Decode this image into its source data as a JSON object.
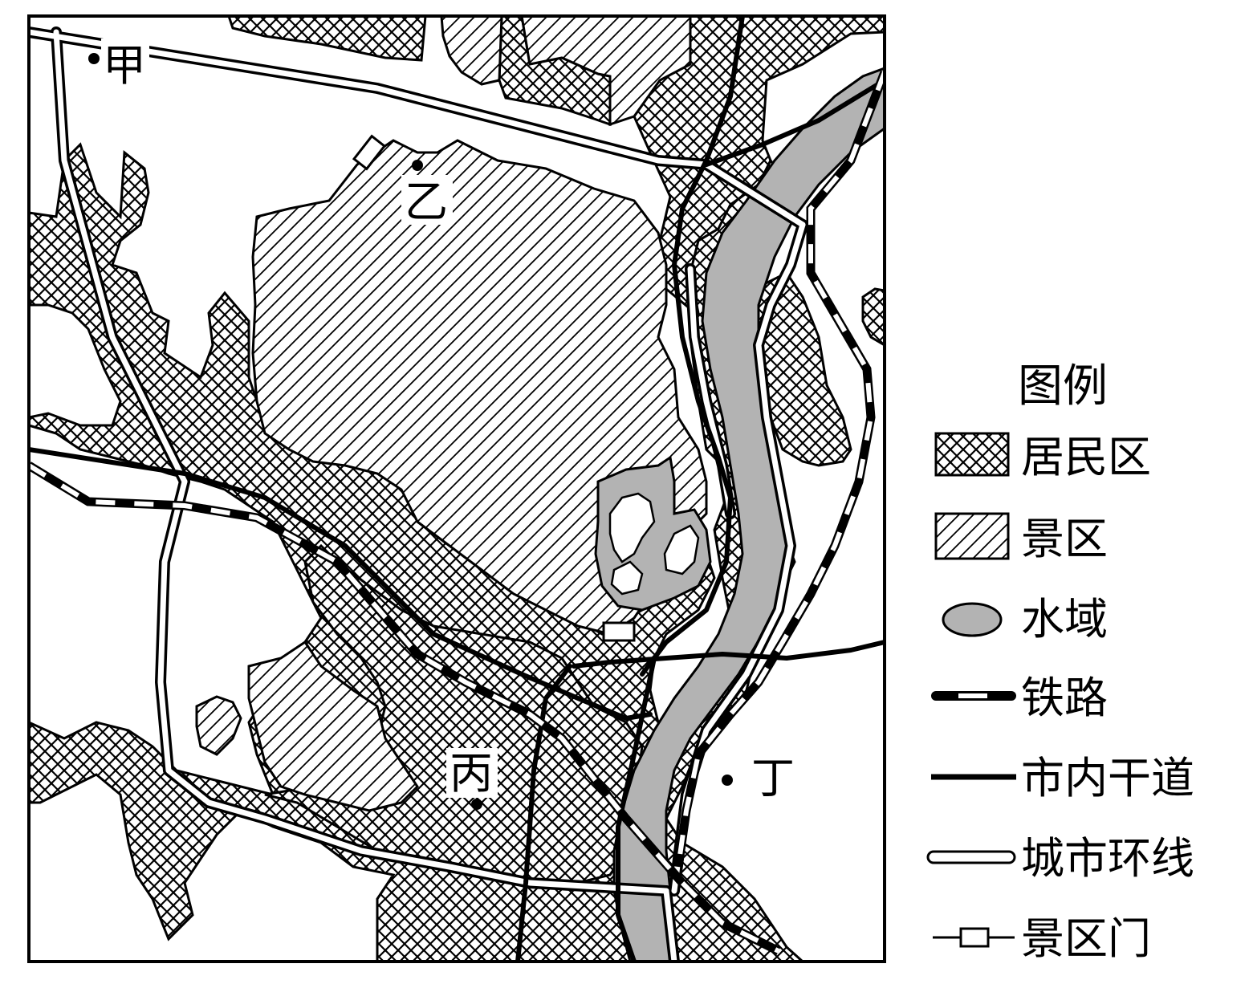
{
  "map": {
    "places": [
      {
        "id": "jia",
        "name": "甲"
      },
      {
        "id": "yi",
        "name": "乙"
      },
      {
        "id": "bing",
        "name": "丙"
      },
      {
        "id": "ding",
        "name": "丁"
      }
    ],
    "legend": {
      "title": "图例",
      "items": [
        {
          "id": "residential",
          "label": "居民区"
        },
        {
          "id": "scenic",
          "label": "景区"
        },
        {
          "id": "water",
          "label": "水域"
        },
        {
          "id": "railway",
          "label": "铁路"
        },
        {
          "id": "arterial",
          "label": "市内干道"
        },
        {
          "id": "ring",
          "label": "城市环线"
        },
        {
          "id": "gate",
          "label": "景区门"
        }
      ]
    },
    "colors": {
      "water": "#b3b3b3",
      "ink": "#000000",
      "background": "#ffffff"
    }
  }
}
